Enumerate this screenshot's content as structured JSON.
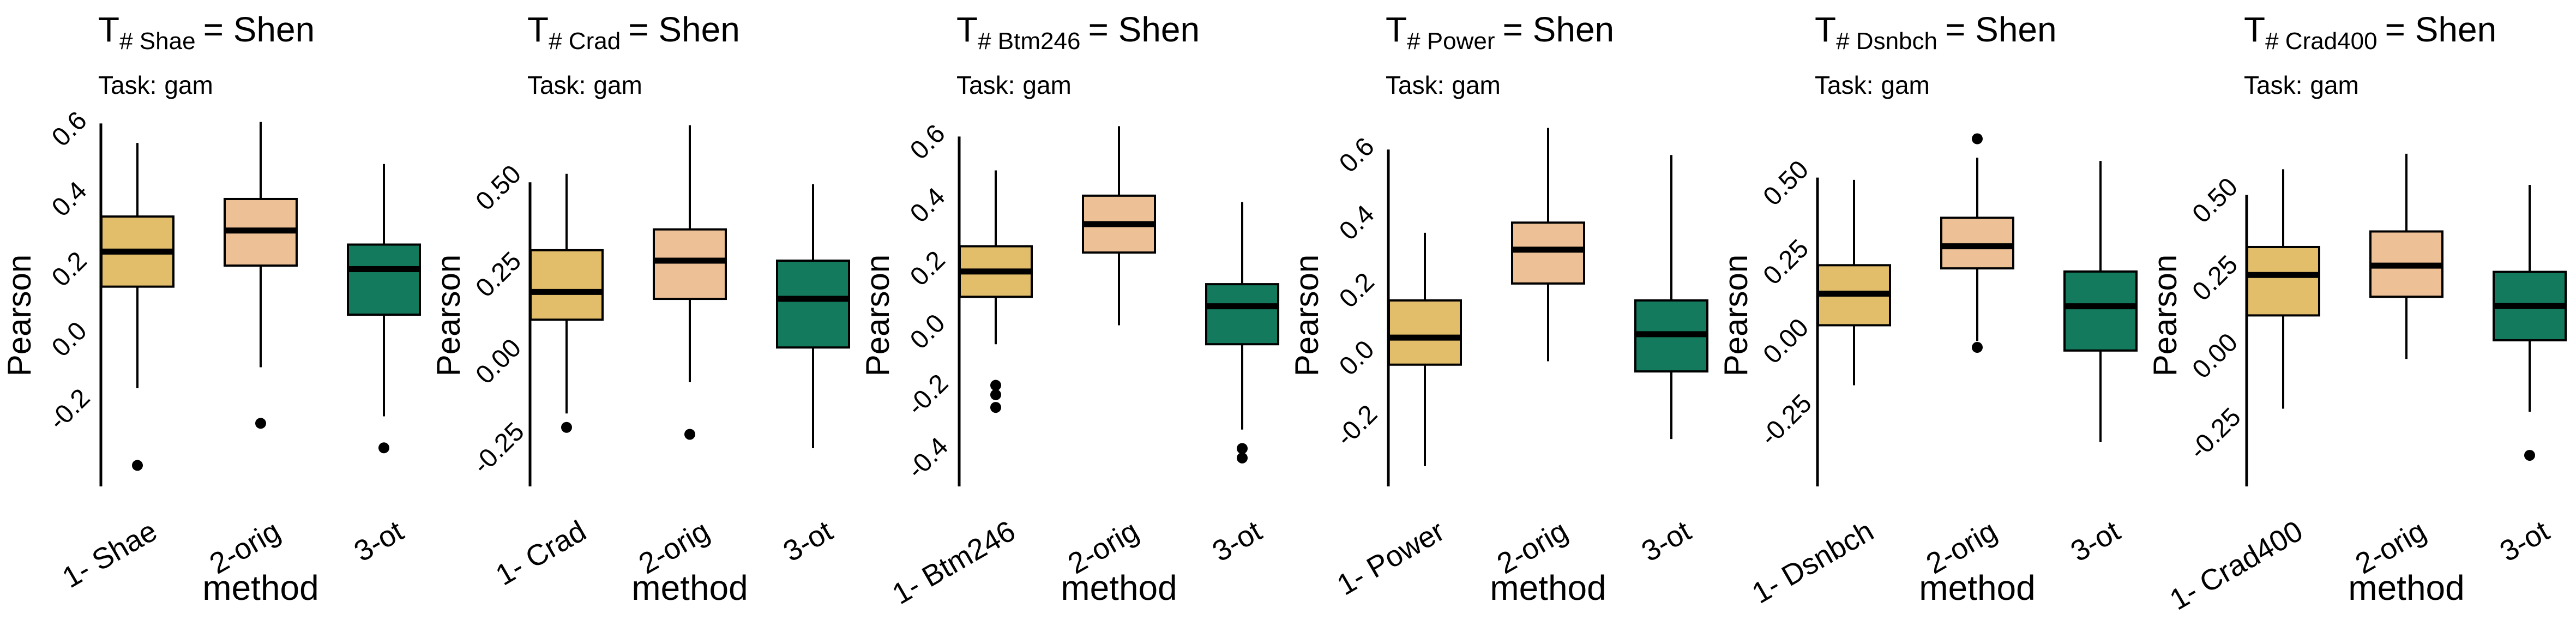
{
  "charts": [
    {
      "title_prefix": "T",
      "title_subscript": "# Shae",
      "title_suffix": "= Shen",
      "task_label": "Task:",
      "task_value": "gam",
      "ylabel": "Pearson",
      "xlabel": "method",
      "categories": [
        "1- Shae",
        "2-orig",
        "3-ot"
      ],
      "y_ticks": [
        {
          "value": 0.6,
          "label": "0.6"
        },
        {
          "value": 0.4,
          "label": "0.4"
        },
        {
          "value": 0.2,
          "label": "0.2"
        },
        {
          "value": 0.0,
          "label": "0.0"
        },
        {
          "value": -0.2,
          "label": "-0.2"
        }
      ],
      "ylim": [
        -0.42,
        0.68
      ],
      "boxes": [
        {
          "min": -0.14,
          "q1": 0.15,
          "median": 0.25,
          "q3": 0.35,
          "max": 0.56,
          "outliers": [
            -0.36
          ],
          "color": "#E3BE6A"
        },
        {
          "min": -0.08,
          "q1": 0.21,
          "median": 0.31,
          "q3": 0.4,
          "max": 0.62,
          "outliers": [
            -0.24
          ],
          "color": "#EEC096"
        },
        {
          "min": -0.22,
          "q1": 0.07,
          "median": 0.2,
          "q3": 0.27,
          "max": 0.5,
          "outliers": [
            -0.31
          ],
          "color": "#137A5E"
        }
      ]
    },
    {
      "title_prefix": "T",
      "title_subscript": "# Crad",
      "title_suffix": "= Shen",
      "task_label": "Task:",
      "task_value": "gam",
      "ylabel": "Pearson",
      "xlabel": "method",
      "categories": [
        "1- Crad",
        "2-orig",
        "3-ot"
      ],
      "y_ticks": [
        {
          "value": 0.5,
          "label": "0.50"
        },
        {
          "value": 0.25,
          "label": "0.25"
        },
        {
          "value": 0.0,
          "label": "0.00"
        },
        {
          "value": -0.25,
          "label": "-0.25"
        }
      ],
      "ylim": [
        -0.36,
        0.75
      ],
      "boxes": [
        {
          "min": -0.15,
          "q1": 0.12,
          "median": 0.2,
          "q3": 0.32,
          "max": 0.54,
          "outliers": [
            -0.19
          ],
          "color": "#E3BE6A"
        },
        {
          "min": -0.06,
          "q1": 0.18,
          "median": 0.29,
          "q3": 0.38,
          "max": 0.68,
          "outliers": [
            -0.21
          ],
          "color": "#EEC096"
        },
        {
          "min": -0.25,
          "q1": 0.04,
          "median": 0.18,
          "q3": 0.29,
          "max": 0.51,
          "outliers": [],
          "color": "#137A5E"
        }
      ]
    },
    {
      "title_prefix": "T",
      "title_subscript": "# Btm246",
      "title_suffix": "= Shen",
      "task_label": "Task:",
      "task_value": "gam",
      "ylabel": "Pearson",
      "xlabel": "method",
      "categories": [
        "1- Btm246",
        "2-orig",
        "3-ot"
      ],
      "y_ticks": [
        {
          "value": 0.6,
          "label": "0.6"
        },
        {
          "value": 0.4,
          "label": "0.4"
        },
        {
          "value": 0.2,
          "label": "0.2"
        },
        {
          "value": 0.0,
          "label": "0.0"
        },
        {
          "value": -0.2,
          "label": "-0.2"
        },
        {
          "value": -0.4,
          "label": "-0.4"
        }
      ],
      "ylim": [
        -0.49,
        0.73
      ],
      "boxes": [
        {
          "min": -0.04,
          "q1": 0.11,
          "median": 0.19,
          "q3": 0.27,
          "max": 0.51,
          "outliers": [
            -0.17,
            -0.2,
            -0.24
          ],
          "color": "#E3BE6A"
        },
        {
          "min": 0.02,
          "q1": 0.25,
          "median": 0.34,
          "q3": 0.43,
          "max": 0.65,
          "outliers": [],
          "color": "#EEC096"
        },
        {
          "min": -0.31,
          "q1": -0.04,
          "median": 0.08,
          "q3": 0.15,
          "max": 0.41,
          "outliers": [
            -0.37,
            -0.4
          ],
          "color": "#137A5E"
        }
      ]
    },
    {
      "title_prefix": "T",
      "title_subscript": "# Power",
      "title_suffix": "= Shen",
      "task_label": "Task:",
      "task_value": "gam",
      "ylabel": "Pearson",
      "xlabel": "method",
      "categories": [
        "1- Power",
        "2-orig",
        "3-ot"
      ],
      "y_ticks": [
        {
          "value": 0.6,
          "label": "0.6"
        },
        {
          "value": 0.4,
          "label": "0.4"
        },
        {
          "value": 0.2,
          "label": "0.2"
        },
        {
          "value": 0.0,
          "label": "0.0"
        },
        {
          "value": -0.2,
          "label": "-0.2"
        }
      ],
      "ylim": [
        -0.38,
        0.76
      ],
      "boxes": [
        {
          "min": -0.32,
          "q1": -0.02,
          "median": 0.06,
          "q3": 0.17,
          "max": 0.37,
          "outliers": [],
          "color": "#E3BE6A"
        },
        {
          "min": -0.01,
          "q1": 0.22,
          "median": 0.32,
          "q3": 0.4,
          "max": 0.68,
          "outliers": [],
          "color": "#EEC096"
        },
        {
          "min": -0.24,
          "q1": -0.04,
          "median": 0.07,
          "q3": 0.17,
          "max": 0.6,
          "outliers": [],
          "color": "#137A5E"
        }
      ]
    },
    {
      "title_prefix": "T",
      "title_subscript": "# Dsnbch",
      "title_suffix": "= Shen",
      "task_label": "Task:",
      "task_value": "gam",
      "ylabel": "Pearson",
      "xlabel": "method",
      "categories": [
        "1- Dsnbch",
        "2-orig",
        "3-ot"
      ],
      "y_ticks": [
        {
          "value": 0.5,
          "label": "0.50"
        },
        {
          "value": 0.25,
          "label": "0.25"
        },
        {
          "value": 0.0,
          "label": "0.00"
        },
        {
          "value": -0.25,
          "label": "-0.25"
        }
      ],
      "ylim": [
        -0.46,
        0.76
      ],
      "boxes": [
        {
          "min": -0.14,
          "q1": 0.05,
          "median": 0.15,
          "q3": 0.24,
          "max": 0.51,
          "outliers": [],
          "color": "#E3BE6A"
        },
        {
          "min": 0.0,
          "q1": 0.23,
          "median": 0.3,
          "q3": 0.39,
          "max": 0.58,
          "outliers": [
            0.64,
            -0.02
          ],
          "color": "#EEC096"
        },
        {
          "min": -0.32,
          "q1": -0.03,
          "median": 0.11,
          "q3": 0.22,
          "max": 0.57,
          "outliers": [],
          "color": "#137A5E"
        }
      ]
    },
    {
      "title_prefix": "T",
      "title_subscript": "# Crad400",
      "title_suffix": "= Shen",
      "task_label": "Task:",
      "task_value": "gam",
      "ylabel": "Pearson",
      "xlabel": "method",
      "categories": [
        "1- Crad400",
        "2-orig",
        "3-ot"
      ],
      "y_ticks": [
        {
          "value": 0.5,
          "label": "0.50"
        },
        {
          "value": 0.25,
          "label": "0.25"
        },
        {
          "value": 0.0,
          "label": "0.00"
        },
        {
          "value": -0.25,
          "label": "-0.25"
        }
      ],
      "ylim": [
        -0.42,
        0.82
      ],
      "boxes": [
        {
          "min": -0.17,
          "q1": 0.13,
          "median": 0.26,
          "q3": 0.35,
          "max": 0.6,
          "outliers": [],
          "color": "#E3BE6A"
        },
        {
          "min": -0.01,
          "q1": 0.19,
          "median": 0.29,
          "q3": 0.4,
          "max": 0.65,
          "outliers": [],
          "color": "#EEC096"
        },
        {
          "min": -0.18,
          "q1": 0.05,
          "median": 0.16,
          "q3": 0.27,
          "max": 0.55,
          "outliers": [
            -0.32
          ],
          "color": "#137A5E"
        }
      ]
    }
  ]
}
